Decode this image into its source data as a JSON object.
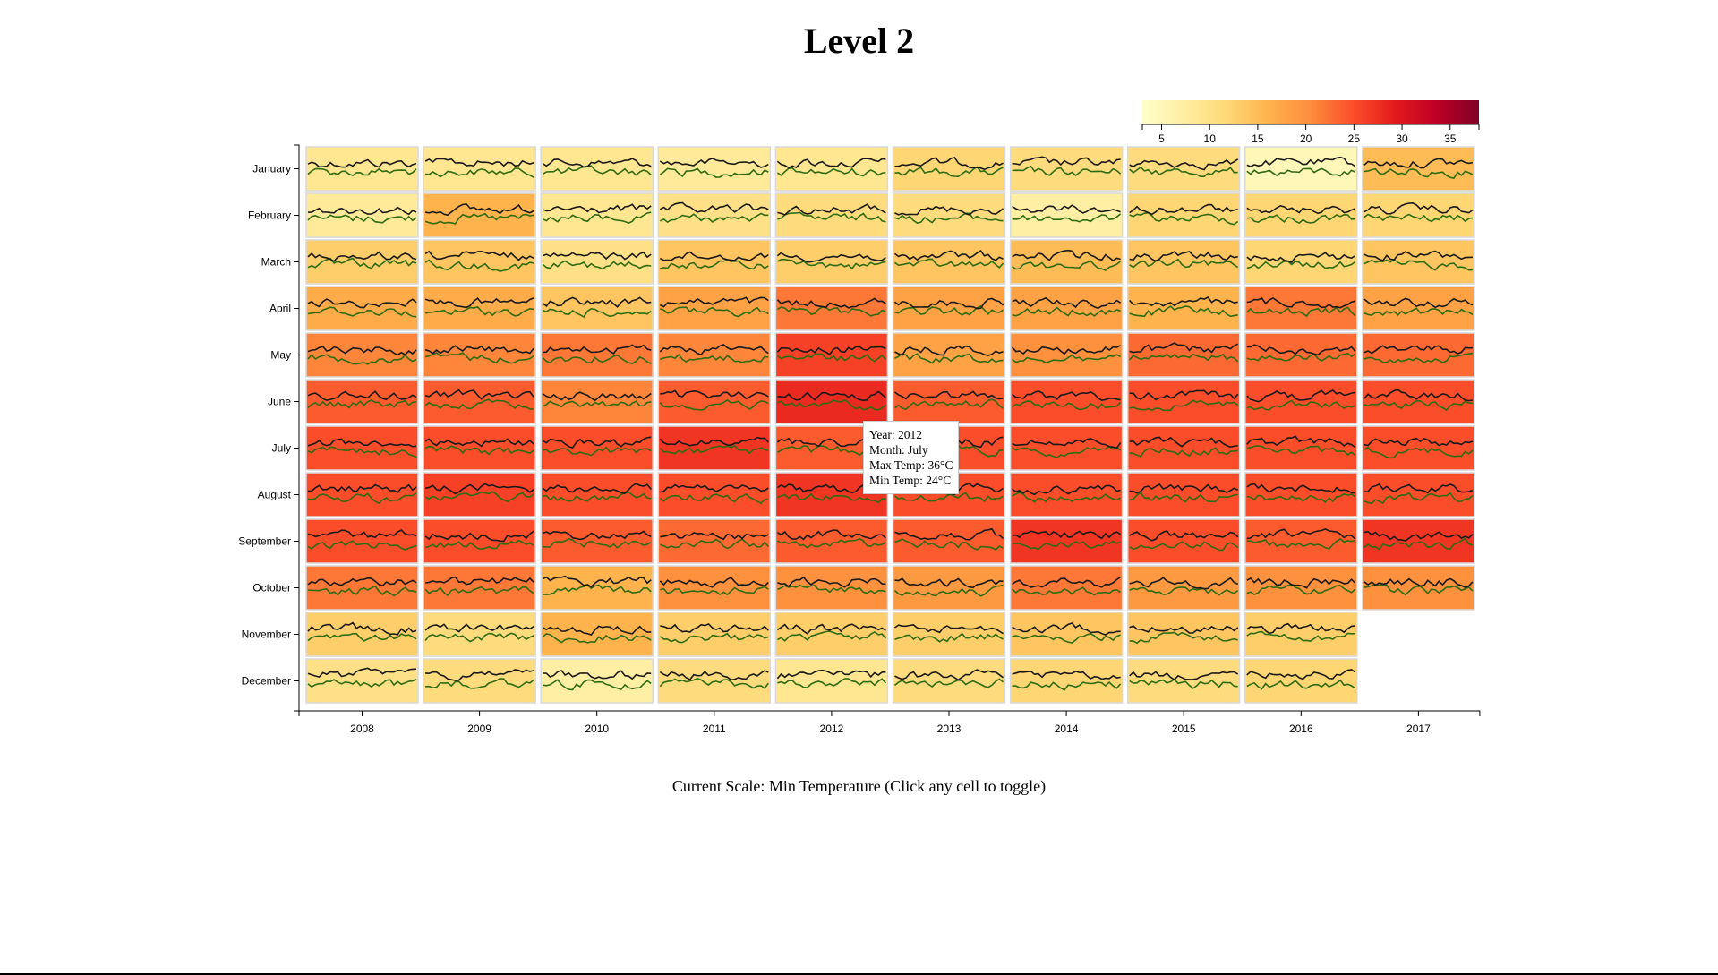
{
  "title": "Level 2",
  "caption": "Current Scale: Min Temperature (Click any cell to toggle)",
  "tooltip": {
    "year": "Year: 2012",
    "month": "Month: July",
    "max": "Max Temp: 36°C",
    "min": "Min Temp: 24°C"
  },
  "legend": {
    "ticks": [
      5,
      10,
      15,
      20,
      25,
      30,
      35
    ],
    "domain": [
      3,
      38
    ],
    "colors": [
      "#ffffcc",
      "#ffeda0",
      "#fed976",
      "#feb24c",
      "#fd8d3c",
      "#fc4e2a",
      "#e31a1c",
      "#bd0026",
      "#800026"
    ]
  },
  "line_colors": {
    "max": "#1a1a1a",
    "min": "#2e6b12"
  },
  "chart_data": {
    "type": "heatmap",
    "value_shown": "min temperature (cell color)",
    "x": [
      2008,
      2009,
      2010,
      2011,
      2012,
      2013,
      2014,
      2015,
      2016,
      2017
    ],
    "y": [
      "January",
      "February",
      "March",
      "April",
      "May",
      "June",
      "July",
      "August",
      "September",
      "October",
      "November",
      "December"
    ],
    "min_temp": [
      [
        9,
        9,
        9,
        8,
        9,
        12,
        11,
        11,
        5,
        15
      ],
      [
        8,
        16,
        9,
        10,
        11,
        11,
        7,
        12,
        12,
        12
      ],
      [
        13,
        14,
        10,
        14,
        13,
        14,
        15,
        14,
        12,
        14
      ],
      [
        17,
        17,
        14,
        18,
        22,
        18,
        18,
        16,
        22,
        18
      ],
      [
        21,
        21,
        22,
        21,
        26,
        18,
        20,
        23,
        23,
        23
      ],
      [
        24,
        24,
        21,
        24,
        28,
        24,
        25,
        25,
        25,
        25
      ],
      [
        25,
        25,
        25,
        27,
        24,
        25,
        25,
        25,
        25,
        25
      ],
      [
        25,
        26,
        25,
        25,
        27,
        25,
        25,
        25,
        25,
        25
      ],
      [
        25,
        25,
        24,
        23,
        24,
        24,
        27,
        25,
        24,
        27
      ],
      [
        22,
        22,
        16,
        20,
        20,
        19,
        22,
        19,
        20,
        20
      ],
      [
        13,
        11,
        16,
        13,
        13,
        13,
        14,
        14,
        13,
        null
      ],
      [
        10,
        11,
        7,
        11,
        9,
        11,
        12,
        11,
        12,
        null
      ]
    ],
    "hovered_cell": {
      "year": 2012,
      "month": "July",
      "max_temp": 36,
      "min_temp": 24
    },
    "legend_ticks": [
      5,
      10,
      15,
      20,
      25,
      30,
      35
    ]
  }
}
